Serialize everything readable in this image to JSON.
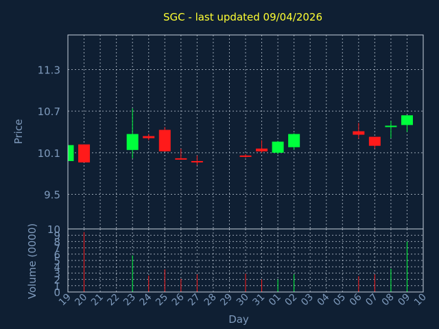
{
  "chart_data": {
    "type": "candlestick",
    "title": "SGC - last updated 09/04/2026",
    "ylabel": "Price",
    "xlabel": "Day",
    "volume_label": "Volume (0000)",
    "colors": {
      "background": "#0f1f33",
      "up": "#00ff3c",
      "down": "#ff1a1a",
      "title": "#ffff33",
      "text": "#7f9bbd",
      "grid": "#c9d3df"
    },
    "x_ticks": [
      "19",
      "20",
      "21",
      "22",
      "23",
      "24",
      "25",
      "26",
      "27",
      "28",
      "29",
      "30",
      "31",
      "01",
      "02",
      "03",
      "04",
      "05",
      "06",
      "07",
      "08",
      "09",
      "10"
    ],
    "price_axis": {
      "ylim": [
        9.0,
        11.8
      ],
      "ticks": [
        "9.5",
        "10.1",
        "10.7",
        "11.3"
      ]
    },
    "volume_axis": {
      "ylim": [
        0,
        10
      ],
      "ticks": [
        "0",
        "1",
        "2",
        "3",
        "4",
        "5",
        "6",
        "7",
        "8",
        "9",
        "10"
      ]
    },
    "candles": [
      {
        "day": "19",
        "open": 9.98,
        "high": 10.21,
        "low": 9.98,
        "close": 10.21,
        "volume": 0
      },
      {
        "day": "20",
        "open": 10.22,
        "high": 10.22,
        "low": 9.96,
        "close": 9.96,
        "volume": 9.5
      },
      {
        "day": "23",
        "open": 10.14,
        "high": 10.74,
        "low": 10.02,
        "close": 10.37,
        "volume": 5.8
      },
      {
        "day": "24",
        "open": 10.34,
        "high": 10.37,
        "low": 10.28,
        "close": 10.31,
        "volume": 2.6
      },
      {
        "day": "25",
        "open": 10.43,
        "high": 10.47,
        "low": 10.12,
        "close": 10.12,
        "volume": 3.6
      },
      {
        "day": "26",
        "open": 10.02,
        "high": 10.16,
        "low": 10.0,
        "close": 10.01,
        "volume": 2.1
      },
      {
        "day": "27",
        "open": 9.98,
        "high": 10.06,
        "low": 9.92,
        "close": 9.97,
        "volume": 2.8
      },
      {
        "day": "30",
        "open": 10.06,
        "high": 10.08,
        "low": 10.03,
        "close": 10.04,
        "volume": 2.9
      },
      {
        "day": "31",
        "open": 10.16,
        "high": 10.28,
        "low": 10.1,
        "close": 10.12,
        "volume": 2.0
      },
      {
        "day": "01",
        "open": 10.1,
        "high": 10.27,
        "low": 10.08,
        "close": 10.26,
        "volume": 2.0
      },
      {
        "day": "02",
        "open": 10.18,
        "high": 10.38,
        "low": 10.14,
        "close": 10.37,
        "volume": 2.8
      },
      {
        "day": "06",
        "open": 10.41,
        "high": 10.53,
        "low": 10.3,
        "close": 10.36,
        "volume": 2.5
      },
      {
        "day": "07",
        "open": 10.33,
        "high": 10.33,
        "low": 10.16,
        "close": 10.2,
        "volume": 2.8
      },
      {
        "day": "08",
        "open": 10.48,
        "high": 10.56,
        "low": 10.31,
        "close": 10.49,
        "volume": 3.7
      },
      {
        "day": "09",
        "open": 10.5,
        "high": 10.64,
        "low": 10.4,
        "close": 10.64,
        "volume": 8.0
      }
    ]
  }
}
